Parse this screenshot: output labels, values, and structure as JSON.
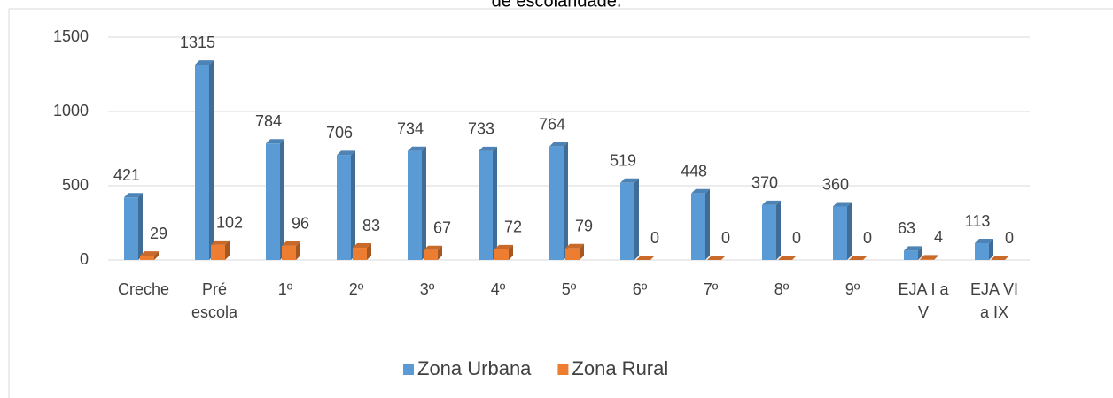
{
  "chart_data": {
    "type": "bar3d",
    "title": "de escolaridade.",
    "categories": [
      "Creche",
      "Pré escola",
      "1º",
      "2º",
      "3º",
      "4º",
      "5º",
      "6º",
      "7º",
      "8º",
      "9º",
      "EJA I a V",
      "EJA VI a IX"
    ],
    "series": [
      {
        "name": "Zona Urbana",
        "color": "#5b9bd5",
        "values": [
          421,
          1315,
          784,
          706,
          734,
          733,
          764,
          519,
          448,
          370,
          360,
          63,
          113
        ]
      },
      {
        "name": "Zona Rural",
        "color": "#ed7d31",
        "values": [
          29,
          102,
          96,
          83,
          67,
          72,
          79,
          0,
          0,
          0,
          0,
          4,
          0
        ]
      }
    ],
    "ylim": [
      0,
      1500
    ],
    "yticks": [
      0,
      500,
      1000,
      1500
    ],
    "grid": true,
    "legend": "bottom"
  }
}
